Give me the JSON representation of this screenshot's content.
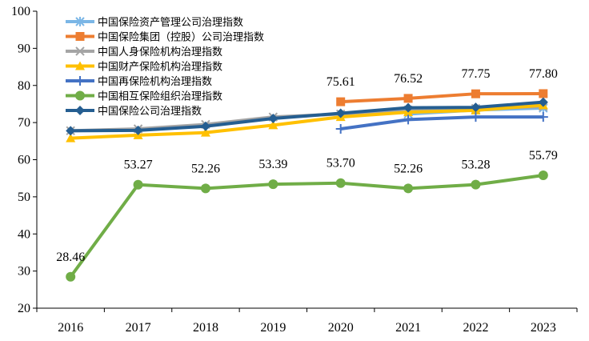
{
  "chart_data": {
    "type": "line",
    "title": "",
    "xlabel": "",
    "ylabel": "",
    "ylim": [
      20,
      100
    ],
    "yticks": [
      20,
      30,
      40,
      50,
      60,
      70,
      80,
      90,
      100
    ],
    "categories": [
      "2016",
      "2017",
      "2018",
      "2019",
      "2020",
      "2021",
      "2022",
      "2023"
    ],
    "grid": false,
    "legend_position": "top-left",
    "series": [
      {
        "name": "中国保险资产管理公司治理指数",
        "color": "#7bb6e6",
        "marker": "asterisk",
        "values": [
          null,
          null,
          null,
          null,
          null,
          72.3,
          73.4,
          73.9
        ]
      },
      {
        "name": "中国保险集团（控股）公司治理指数",
        "color": "#ed7d31",
        "marker": "square",
        "values": [
          null,
          null,
          null,
          null,
          75.61,
          76.52,
          77.75,
          77.8
        ]
      },
      {
        "name": "中国人身保险机构治理指数",
        "color": "#a5a5a5",
        "marker": "x",
        "values": [
          67.8,
          68.3,
          69.5,
          71.5,
          72.3,
          73.4,
          73.8,
          74.3
        ]
      },
      {
        "name": "中国财产保险机构治理指数",
        "color": "#ffc000",
        "marker": "triangle",
        "values": [
          65.8,
          66.6,
          67.3,
          69.3,
          71.5,
          72.8,
          73.3,
          74.7
        ]
      },
      {
        "name": "中国再保险机构治理指数",
        "color": "#4472c4",
        "marker": "plus",
        "values": [
          null,
          null,
          null,
          null,
          68.3,
          70.8,
          71.5,
          71.5
        ]
      },
      {
        "name": "中国相互保险组织治理指数",
        "color": "#70ad47",
        "marker": "circle",
        "values": [
          28.46,
          53.27,
          52.26,
          53.39,
          53.7,
          52.26,
          53.28,
          55.79
        ]
      },
      {
        "name": "中国保险公司治理指数",
        "color": "#255e91",
        "marker": "diamond",
        "values": [
          67.8,
          67.9,
          69.0,
          71.1,
          72.5,
          74.0,
          74.1,
          75.5
        ]
      }
    ],
    "data_labels": [
      {
        "series": 1,
        "index": 4,
        "text": "75.61"
      },
      {
        "series": 1,
        "index": 5,
        "text": "76.52"
      },
      {
        "series": 1,
        "index": 6,
        "text": "77.75"
      },
      {
        "series": 1,
        "index": 7,
        "text": "77.80"
      },
      {
        "series": 5,
        "index": 0,
        "text": "28.46"
      },
      {
        "series": 5,
        "index": 1,
        "text": "53.27"
      },
      {
        "series": 5,
        "index": 2,
        "text": "52.26"
      },
      {
        "series": 5,
        "index": 3,
        "text": "53.39"
      },
      {
        "series": 5,
        "index": 4,
        "text": "53.70"
      },
      {
        "series": 5,
        "index": 5,
        "text": "52.26"
      },
      {
        "series": 5,
        "index": 6,
        "text": "53.28"
      },
      {
        "series": 5,
        "index": 7,
        "text": "55.79"
      }
    ]
  }
}
